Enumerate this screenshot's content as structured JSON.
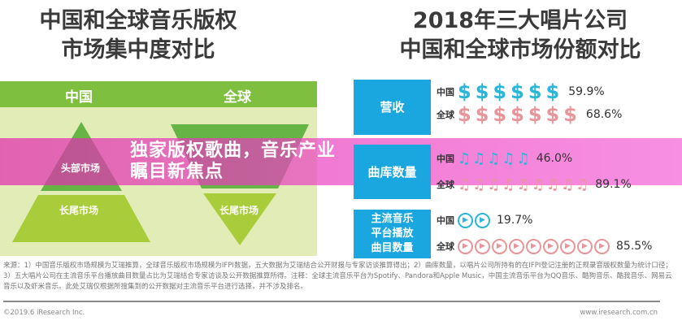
{
  "left": {
    "title": "中国和全球音乐版权\n市场集中度对比",
    "china": "中国",
    "global": "全球",
    "head": "头部市场",
    "tail": "长尾市场"
  },
  "right": {
    "title": "2018年三大唱片公司\n中国和全球市场份额对比",
    "china": "中国",
    "global": "全球",
    "categories": [
      "营收",
      "曲库数量",
      "主流音乐\n平台播放\n曲目数量"
    ]
  },
  "chart_data": {
    "type": "table",
    "categories": [
      "营收",
      "曲库数量",
      "主流音乐平台播放曲目数量"
    ],
    "series": [
      {
        "name": "中国",
        "values": [
          59.9,
          46.0,
          19.7
        ],
        "labels": [
          "59.9%",
          "46.0%",
          "19.7%"
        ]
      },
      {
        "name": "全球",
        "values": [
          68.6,
          89.1,
          85.5
        ],
        "labels": [
          "68.6%",
          "89.1%",
          "85.5%"
        ]
      }
    ]
  },
  "colors": {
    "china": "#2bb5d8",
    "global": "#e8959a",
    "banner": "#e83cb8",
    "green": "#7fbf3f",
    "box": "#1aa6de"
  },
  "notes": "来源：1）中国音乐版权市场规模为艾瑞推算，全球音乐版权市场规模为IFPI数据，五大数据为艾瑞结合公开财报与专家访谈推算得出；2）曲库数量，以唱片公司所持有的在IFPI登记注册的正规录音版权数量为统计口径；3）五大唱片公司在主流音乐平台播放曲目数量占比为艾瑞结合专家访谈及公开数据推算所得。注释：全球主流音乐平台为Spotify、Pandora和Apple Music，中国主流音乐平台为QQ音乐、酷狗音乐、酷我音乐、网易云音乐以及虾米音乐。此处艾瑞仅根据所搜集到的公开数据对主流音乐平台进行选择，并不涉及排名。",
  "copyright": "©2019.6 iResearch Inc.",
  "site": "www.iresearch.com.cn",
  "banner": "独家版权歌曲，音乐产业瞩目新焦点"
}
